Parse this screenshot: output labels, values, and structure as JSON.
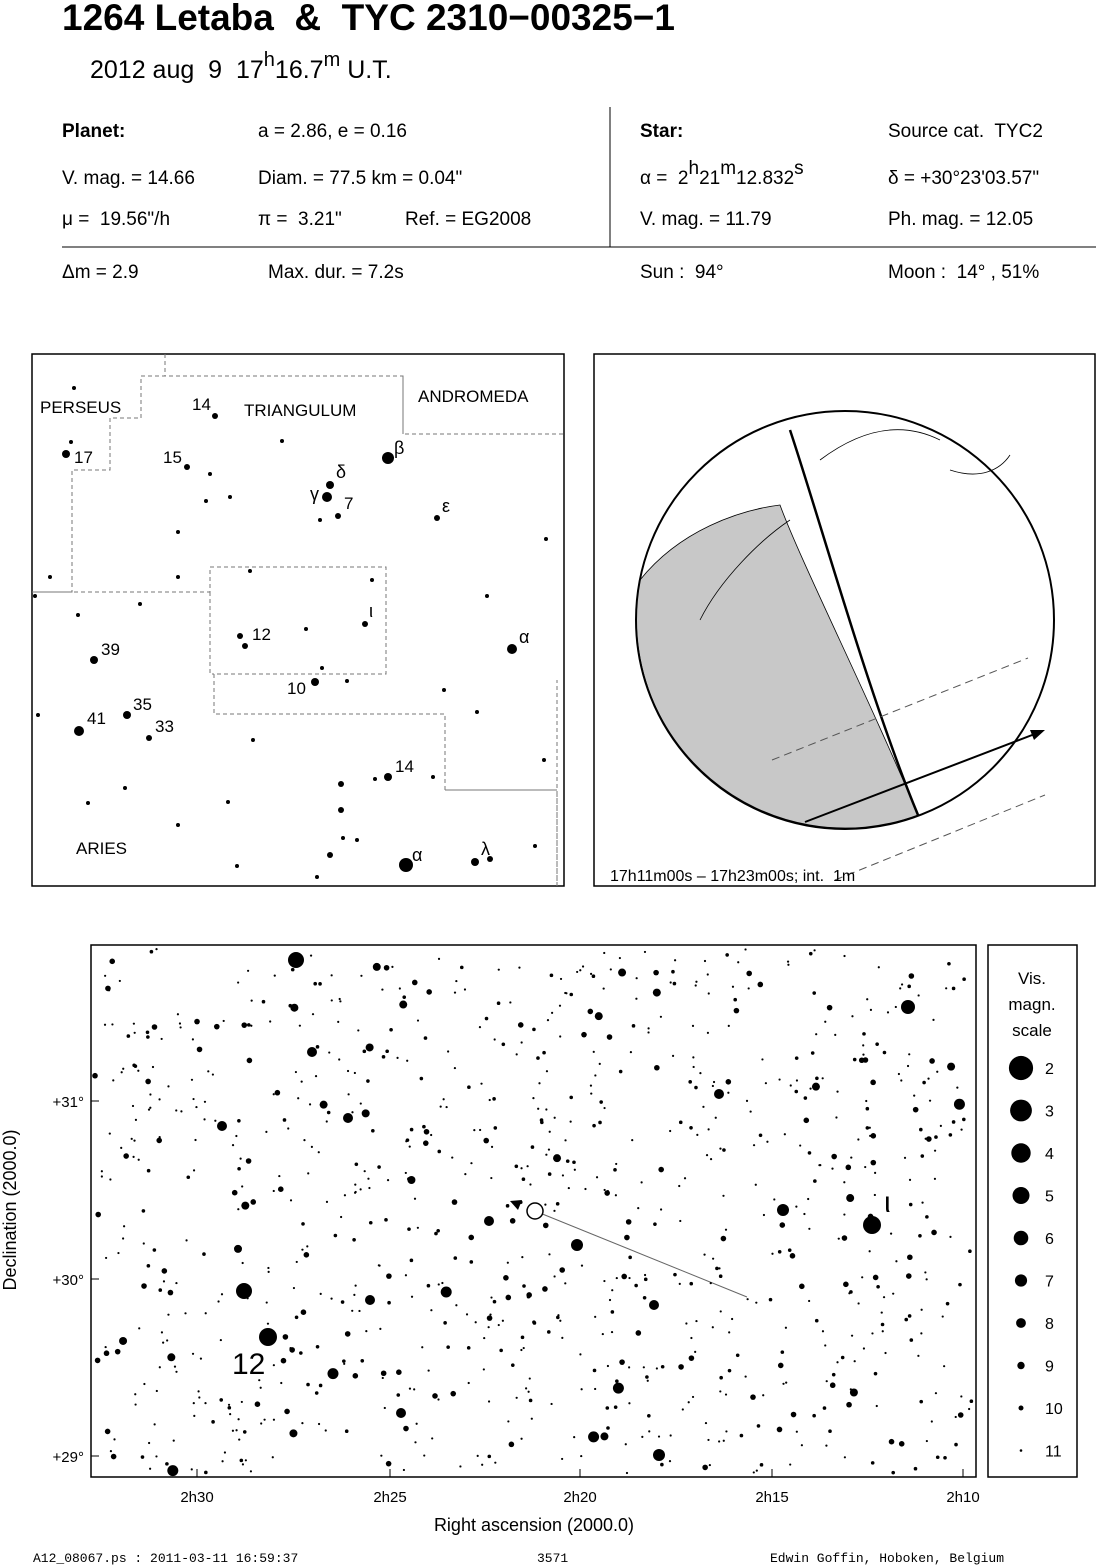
{
  "header": {
    "title": "1264 Letaba  &  TYC 2310−00325−1",
    "date": "2012 aug  9",
    "time": [
      "17",
      "h",
      "16.7",
      "m",
      " U.T."
    ]
  },
  "planet": {
    "heading": "Planet:",
    "orbit": "a = 2.86, e = 0.16",
    "vmag": "V. mag. = 14.66",
    "diam": "Diam. = 77.5 km = 0.04\"",
    "mu": "μ =  19.56\"/h",
    "pi": "π =  3.21\"",
    "ref": "Ref. = EG2008"
  },
  "star": {
    "heading": "Star:",
    "source": "Source cat.  TYC2",
    "alpha": [
      "α =  2",
      "h",
      "21",
      "m",
      "12.832",
      "s"
    ],
    "delta": "δ = +30°23'03.57\"",
    "vmag": "V. mag. = 11.79",
    "phmag": "Ph. mag. = 12.05"
  },
  "event": {
    "dm": "Δm = 2.9",
    "maxdur": "Max. dur. = 7.2s",
    "sun": "Sun :  94°",
    "moon": "Moon :  14° , 51%"
  },
  "finder": {
    "labels": [
      "PERSEUS",
      "14",
      "TRIANGULUM",
      "ANDROMEDA",
      "17",
      "15",
      "β",
      "δ",
      "γ",
      "7",
      "ε",
      "ι",
      "12",
      "α",
      "39",
      "10",
      "35",
      "41",
      "33",
      "14",
      "ARIES",
      "α",
      "λ"
    ]
  },
  "globe": {
    "caption": "17h11m00s – 17h23m00s; int.  1m"
  },
  "chart": {
    "xticks": [
      "2h30",
      "2h25",
      "2h20",
      "2h15",
      "2h10"
    ],
    "yticks": [
      "+31°",
      "+30°",
      "+29°"
    ],
    "xlabel": "Right ascension (2000.0)",
    "ylabel": "Declination (2000.0)",
    "labels": [
      "ι",
      "12"
    ],
    "legend": {
      "title": [
        "Vis.",
        "magn.",
        "scale"
      ],
      "mags": [
        2,
        3,
        4,
        5,
        6,
        7,
        8,
        9,
        10,
        11
      ]
    }
  },
  "footer": {
    "file": "A12_08067.ps : 2011-03-11 16:59:37",
    "number": "3571",
    "author": "Edwin Goffin, Hoboken, Belgium"
  }
}
